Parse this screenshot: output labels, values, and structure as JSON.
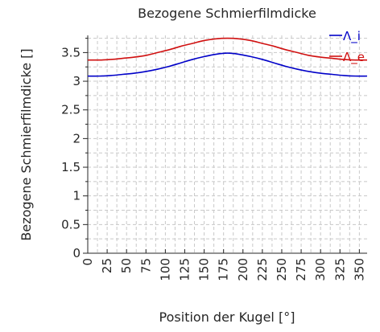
{
  "chart_data": {
    "type": "line",
    "title": "Bezogene Schmierfilmdicke",
    "xlabel": "Position der Kugel [°]",
    "ylabel": "Bezogene Schmierfilmdicke []",
    "xlim": [
      0,
      360
    ],
    "ylim": [
      0,
      3.8
    ],
    "xticks": [
      "0",
      "25",
      "50",
      "75",
      "100",
      "125",
      "150",
      "175",
      "200",
      "225",
      "250",
      "275",
      "300",
      "325",
      "350"
    ],
    "yticks": [
      "0",
      "0.5",
      "1",
      "1.5",
      "2",
      "2.5",
      "3",
      "3.5"
    ],
    "grid": true,
    "legend_position": "top-right",
    "x": [
      0,
      15,
      30,
      45,
      60,
      75,
      90,
      105,
      120,
      135,
      150,
      165,
      180,
      195,
      210,
      225,
      240,
      255,
      270,
      285,
      300,
      315,
      330,
      345,
      360
    ],
    "series": [
      {
        "name": "Λ_i",
        "color": "#0000c8",
        "values": [
          3.09,
          3.09,
          3.1,
          3.12,
          3.14,
          3.17,
          3.21,
          3.26,
          3.32,
          3.38,
          3.43,
          3.47,
          3.49,
          3.47,
          3.43,
          3.38,
          3.32,
          3.26,
          3.21,
          3.17,
          3.14,
          3.12,
          3.1,
          3.09,
          3.09
        ]
      },
      {
        "name": "Λ_e",
        "color": "#d01010",
        "values": [
          3.37,
          3.37,
          3.38,
          3.4,
          3.42,
          3.45,
          3.5,
          3.55,
          3.61,
          3.66,
          3.71,
          3.74,
          3.75,
          3.74,
          3.71,
          3.66,
          3.61,
          3.55,
          3.5,
          3.45,
          3.42,
          3.4,
          3.38,
          3.37,
          3.37
        ]
      }
    ]
  }
}
